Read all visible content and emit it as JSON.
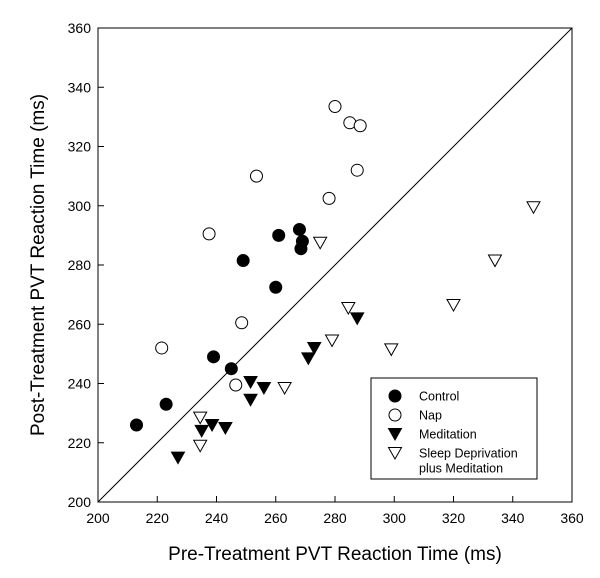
{
  "chart_data": {
    "type": "scatter",
    "title": "",
    "xlabel": "Pre-Treatment PVT Reaction Time (ms)",
    "ylabel": "Post-Treatment PVT Reaction Time (ms)",
    "xlim": [
      200,
      360
    ],
    "ylim": [
      200,
      360
    ],
    "xticks": [
      200,
      220,
      240,
      260,
      280,
      300,
      320,
      340,
      360
    ],
    "yticks": [
      200,
      220,
      240,
      260,
      280,
      300,
      320,
      340,
      360
    ],
    "reference_line": {
      "type": "identity",
      "from": [
        200,
        200
      ],
      "to": [
        360,
        360
      ]
    },
    "legend_position": "bottom-right",
    "series": [
      {
        "name": "Control",
        "marker": "filled-circle",
        "points": [
          [
            213,
            226
          ],
          [
            223,
            233
          ],
          [
            239,
            249
          ],
          [
            245,
            245
          ],
          [
            249,
            281.5
          ],
          [
            260,
            272.5
          ],
          [
            261,
            290
          ],
          [
            268,
            292
          ],
          [
            269,
            288
          ],
          [
            268.5,
            285.5
          ]
        ]
      },
      {
        "name": "Nap",
        "marker": "open-circle",
        "points": [
          [
            221.5,
            252
          ],
          [
            237.5,
            290.5
          ],
          [
            246.5,
            239.5
          ],
          [
            248.5,
            260.5
          ],
          [
            253.5,
            310
          ],
          [
            278,
            302.5
          ],
          [
            280,
            333.5
          ],
          [
            285,
            328
          ],
          [
            288.5,
            327
          ],
          [
            287.5,
            312
          ]
        ]
      },
      {
        "name": "Meditation",
        "marker": "filled-triangle-down",
        "points": [
          [
            227,
            215
          ],
          [
            235,
            224
          ],
          [
            238.5,
            226
          ],
          [
            243,
            225
          ],
          [
            251.5,
            240.5
          ],
          [
            251.5,
            234.5
          ],
          [
            256,
            238.5
          ],
          [
            271,
            248.5
          ],
          [
            273,
            252
          ],
          [
            287.5,
            262
          ]
        ]
      },
      {
        "name": "Sleep Deprivation plus Meditation",
        "legend_lines": [
          "Sleep Deprivation",
          "plus Meditation"
        ],
        "marker": "open-triangle-down",
        "points": [
          [
            234.5,
            219
          ],
          [
            234.5,
            228.5
          ],
          [
            263,
            238.5
          ],
          [
            275,
            287.5
          ],
          [
            279,
            254.5
          ],
          [
            284.5,
            265.5
          ],
          [
            299,
            251.5
          ],
          [
            320,
            266.5
          ],
          [
            334,
            281.5
          ],
          [
            347,
            299.5
          ]
        ]
      }
    ]
  }
}
